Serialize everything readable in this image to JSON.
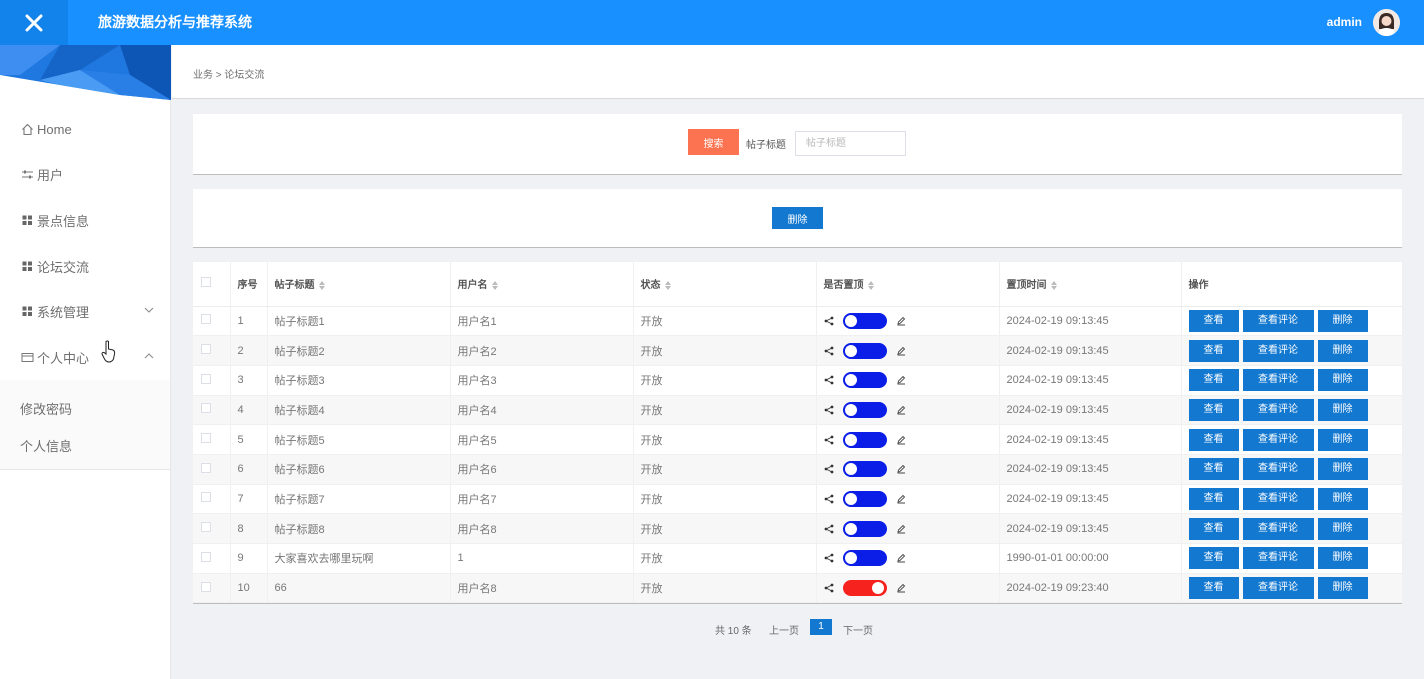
{
  "header": {
    "title": "旅游数据分析与推荐系统",
    "username": "admin"
  },
  "sidebar": {
    "items": [
      {
        "label": "Home",
        "icon": "home-icon"
      },
      {
        "label": "用户",
        "icon": "sliders-icon"
      },
      {
        "label": "景点信息",
        "icon": "grid-icon"
      },
      {
        "label": "论坛交流",
        "icon": "grid-icon"
      },
      {
        "label": "系统管理",
        "icon": "grid-icon"
      },
      {
        "label": "个人中心",
        "icon": "card-icon"
      }
    ],
    "sub_items": [
      {
        "label": "修改密码"
      },
      {
        "label": "个人信息"
      }
    ]
  },
  "breadcrumb": "业务 > 论坛交流",
  "search": {
    "button_label": "搜索",
    "field_label": "帖子标题",
    "placeholder": "帖子标题",
    "value": ""
  },
  "actions": {
    "delete_label": "删除"
  },
  "table": {
    "columns": [
      "序号",
      "帖子标题",
      "用户名",
      "状态",
      "是否置顶",
      "置顶时间",
      "操作"
    ],
    "rows": [
      {
        "index": "1",
        "title": "帖子标题1",
        "user": "用户名1",
        "status": "开放",
        "pinned": true,
        "time": "2024-02-19 09:13:45"
      },
      {
        "index": "2",
        "title": "帖子标题2",
        "user": "用户名2",
        "status": "开放",
        "pinned": true,
        "time": "2024-02-19 09:13:45"
      },
      {
        "index": "3",
        "title": "帖子标题3",
        "user": "用户名3",
        "status": "开放",
        "pinned": true,
        "time": "2024-02-19 09:13:45"
      },
      {
        "index": "4",
        "title": "帖子标题4",
        "user": "用户名4",
        "status": "开放",
        "pinned": true,
        "time": "2024-02-19 09:13:45"
      },
      {
        "index": "5",
        "title": "帖子标题5",
        "user": "用户名5",
        "status": "开放",
        "pinned": true,
        "time": "2024-02-19 09:13:45"
      },
      {
        "index": "6",
        "title": "帖子标题6",
        "user": "用户名6",
        "status": "开放",
        "pinned": true,
        "time": "2024-02-19 09:13:45"
      },
      {
        "index": "7",
        "title": "帖子标题7",
        "user": "用户名7",
        "status": "开放",
        "pinned": true,
        "time": "2024-02-19 09:13:45"
      },
      {
        "index": "8",
        "title": "帖子标题8",
        "user": "用户名8",
        "status": "开放",
        "pinned": true,
        "time": "2024-02-19 09:13:45"
      },
      {
        "index": "9",
        "title": "大家喜欢去哪里玩啊",
        "user": "1",
        "status": "开放",
        "pinned": true,
        "time": "1990-01-01 00:00:00"
      },
      {
        "index": "10",
        "title": "66",
        "user": "用户名8",
        "status": "开放",
        "pinned": false,
        "time": "2024-02-19 09:23:40"
      }
    ],
    "row_actions": {
      "view": "查看",
      "view_comments": "查看评论",
      "delete": "删除"
    }
  },
  "pagination": {
    "total": "共 10 条",
    "prev": "上一页",
    "current": "1",
    "next": "下一页"
  },
  "colors": {
    "header": "#1890ff",
    "search_button": "#fb7351",
    "primary_button": "#1378d0",
    "switch_on": "#0a1ee8",
    "switch_off": "#f5221e"
  }
}
